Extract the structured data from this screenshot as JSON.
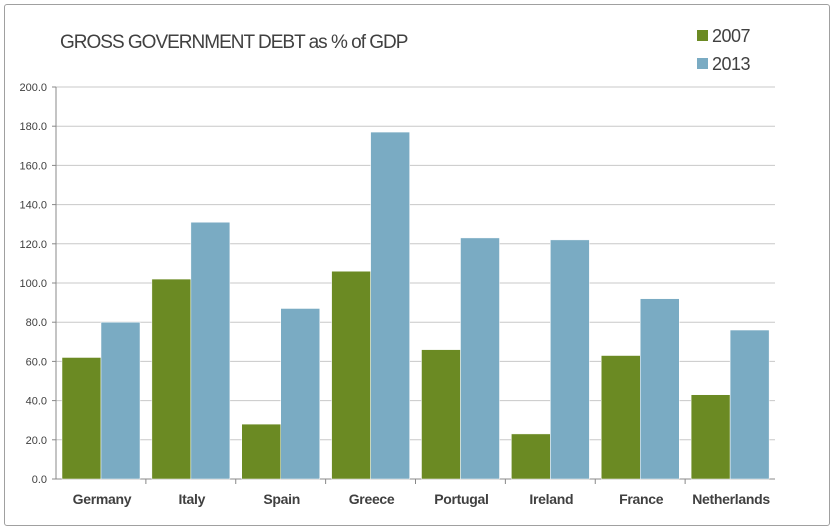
{
  "chart_data": {
    "type": "bar",
    "title": "GROSS GOVERNMENT DEBT as % of GDP",
    "xlabel": "",
    "ylabel": "",
    "ylim": [
      0,
      200
    ],
    "yticks": [
      "0.0",
      "20.0",
      "40.0",
      "60.0",
      "80.0",
      "100.0",
      "120.0",
      "140.0",
      "160.0",
      "180.0",
      "200.0"
    ],
    "grid": true,
    "legend_position": "top-right",
    "categories": [
      "Germany",
      "Italy",
      "Spain",
      "Greece",
      "Portugal",
      "Ireland",
      "France",
      "Netherlands"
    ],
    "series": [
      {
        "name": "2007",
        "color": "#6b8a23",
        "values": [
          62,
          102,
          28,
          106,
          66,
          23,
          63,
          43
        ]
      },
      {
        "name": "2013",
        "color": "#7aabc3",
        "values": [
          80,
          131,
          87,
          177,
          123,
          122,
          92,
          76
        ]
      }
    ]
  }
}
